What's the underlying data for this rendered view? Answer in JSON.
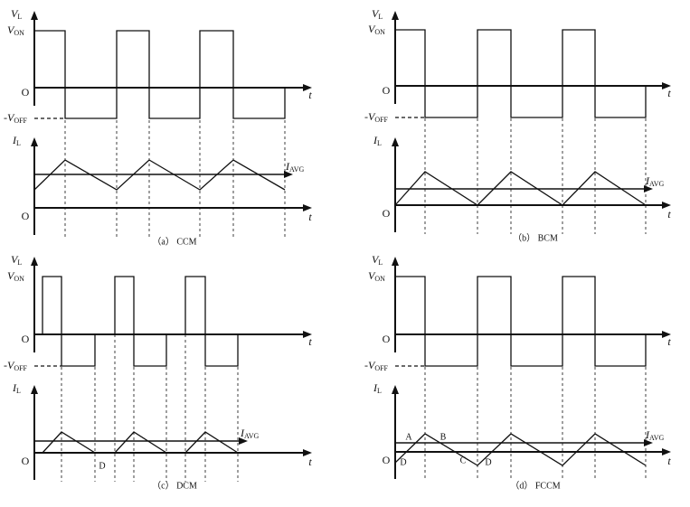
{
  "panels": [
    {
      "caption": "（a） CCM",
      "voltage_axis": [
        "V",
        "L"
      ],
      "v_on": [
        "V",
        "ON"
      ],
      "origin_top": "O",
      "time_top": "t",
      "v_off": [
        "-V",
        "OFF"
      ],
      "current_axis": [
        "I",
        "L"
      ],
      "i_avg": [
        "I",
        "AVG"
      ],
      "origin_bottom": "O",
      "time_bottom": "t"
    },
    {
      "caption": "（b） BCM",
      "voltage_axis": [
        "V",
        "L"
      ],
      "v_on": [
        "V",
        "ON"
      ],
      "origin_top": "O",
      "time_top": "t",
      "v_off": [
        "-V",
        "OFF"
      ],
      "current_axis": [
        "I",
        "L"
      ],
      "i_avg": [
        "I",
        "AVG"
      ],
      "origin_bottom": "O",
      "time_bottom": "t"
    },
    {
      "caption": "（c） DCM",
      "voltage_axis": [
        "V",
        "L"
      ],
      "v_on": [
        "V",
        "ON"
      ],
      "origin_top": "O",
      "time_top": "t",
      "v_off": [
        "-V",
        "OFF"
      ],
      "current_axis": [
        "I",
        "L"
      ],
      "i_avg": [
        "I",
        "AVG"
      ],
      "origin_bottom": "O",
      "time_bottom": "t",
      "point_labels": [
        "D"
      ]
    },
    {
      "caption": "（d） FCCM",
      "voltage_axis": [
        "V",
        "L"
      ],
      "v_on": [
        "V",
        "ON"
      ],
      "origin_top": "O",
      "time_top": "t",
      "v_off": [
        "-V",
        "OFF"
      ],
      "current_axis": [
        "I",
        "L"
      ],
      "i_avg": [
        "I",
        "AVG"
      ],
      "origin_bottom": "O",
      "time_bottom": "t",
      "point_labels": [
        "A",
        "B",
        "C",
        "D",
        "D"
      ]
    }
  ]
}
